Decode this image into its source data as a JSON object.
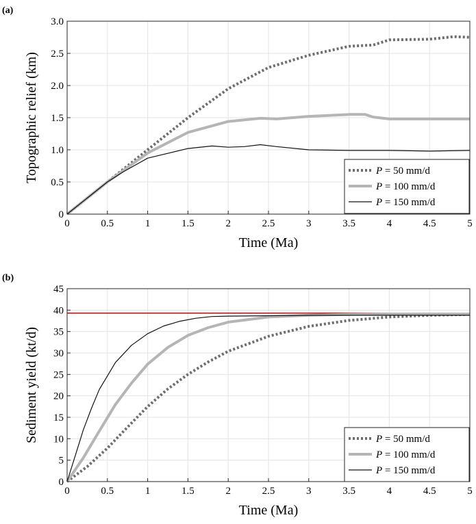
{
  "chart_data": [
    {
      "panel_label": "(a)",
      "type": "line",
      "xlabel": "Time (Ma)",
      "ylabel": "Topographic relief (km)",
      "xlim": [
        0,
        5
      ],
      "ylim": [
        0,
        3.0
      ],
      "xticks": [
        "0",
        "0.5",
        "1",
        "1.5",
        "2",
        "2.5",
        "3",
        "3.5",
        "4",
        "4.5",
        "5"
      ],
      "yticks": [
        "0",
        "0.5",
        "1.0",
        "1.5",
        "2.0",
        "2.5",
        "3.0"
      ],
      "grid": true,
      "legend_position": "bottom-right",
      "series": [
        {
          "name_italic": "P",
          "name_rest": " = 50 mm/d",
          "color": "#6e6e6e",
          "style": "dotted",
          "x": [
            0,
            0.5,
            0.7,
            1.0,
            1.5,
            2.0,
            2.5,
            3.0,
            3.5,
            3.8,
            4.0,
            4.5,
            4.8,
            5.0
          ],
          "y": [
            0,
            0.5,
            0.7,
            1.0,
            1.5,
            1.95,
            2.28,
            2.47,
            2.61,
            2.63,
            2.71,
            2.72,
            2.76,
            2.75
          ]
        },
        {
          "name_italic": "P",
          "name_rest": " = 100 mm/d",
          "color": "#b5b5b5",
          "style": "thick",
          "x": [
            0,
            0.5,
            0.7,
            1.0,
            1.5,
            2.0,
            2.4,
            2.6,
            3.0,
            3.5,
            3.7,
            3.8,
            4.0,
            4.5,
            5.0
          ],
          "y": [
            0,
            0.5,
            0.68,
            0.95,
            1.27,
            1.44,
            1.49,
            1.48,
            1.52,
            1.55,
            1.55,
            1.51,
            1.48,
            1.48,
            1.48
          ]
        },
        {
          "name_italic": "P",
          "name_rest": " = 150 mm/d",
          "color": "#111111",
          "style": "thin",
          "x": [
            0,
            0.5,
            0.7,
            1.0,
            1.5,
            1.8,
            2.0,
            2.2,
            2.4,
            2.6,
            3.0,
            3.5,
            4.0,
            4.5,
            5.0
          ],
          "y": [
            0,
            0.5,
            0.66,
            0.87,
            1.02,
            1.06,
            1.04,
            1.05,
            1.08,
            1.05,
            1.0,
            0.99,
            0.99,
            0.98,
            0.99
          ]
        }
      ]
    },
    {
      "panel_label": "(b)",
      "type": "line",
      "xlabel": "Time (Ma)",
      "ylabel": "Sediment yield (kt/d)",
      "xlim": [
        0,
        5
      ],
      "ylim": [
        0,
        45
      ],
      "xticks": [
        "0",
        "0.5",
        "1",
        "1.5",
        "2",
        "2.5",
        "3",
        "3.5",
        "4",
        "4.5",
        "5"
      ],
      "yticks": [
        "0",
        "5",
        "10",
        "15",
        "20",
        "25",
        "30",
        "35",
        "40",
        "45"
      ],
      "grid": true,
      "legend_position": "bottom-right",
      "reference_line": {
        "y": 39.3,
        "color": "#e00000"
      },
      "series": [
        {
          "name_italic": "P",
          "name_rest": " = 50 mm/d",
          "color": "#6e6e6e",
          "style": "dotted",
          "x": [
            0,
            0.25,
            0.5,
            0.75,
            1.0,
            1.25,
            1.5,
            1.75,
            2.0,
            2.5,
            3.0,
            3.5,
            4.0,
            4.5,
            5.0
          ],
          "y": [
            0,
            3.5,
            7.8,
            12.7,
            17.5,
            21.6,
            25.0,
            27.9,
            30.4,
            33.9,
            36.2,
            37.6,
            38.4,
            38.8,
            39.0
          ]
        },
        {
          "name_italic": "P",
          "name_rest": " = 100 mm/d",
          "color": "#b5b5b5",
          "style": "thick",
          "x": [
            0,
            0.2,
            0.4,
            0.6,
            0.8,
            1.0,
            1.25,
            1.5,
            1.75,
            2.0,
            2.5,
            3.0,
            3.5,
            4.0,
            5.0
          ],
          "y": [
            0,
            5.5,
            11.8,
            18.0,
            23.0,
            27.4,
            31.3,
            34.1,
            35.9,
            37.2,
            38.4,
            38.8,
            39.0,
            39.1,
            39.1
          ]
        },
        {
          "name_italic": "P",
          "name_rest": " = 150 mm/d",
          "color": "#111111",
          "style": "thin",
          "x": [
            0,
            0.1,
            0.2,
            0.3,
            0.4,
            0.6,
            0.8,
            1.0,
            1.2,
            1.4,
            1.6,
            1.8,
            2.0,
            2.5,
            3.0,
            3.5,
            4.0,
            4.5,
            5.0
          ],
          "y": [
            0,
            6.0,
            12.0,
            17.0,
            21.5,
            27.8,
            31.8,
            34.5,
            36.3,
            37.4,
            38.1,
            38.5,
            38.6,
            38.7,
            38.8,
            38.8,
            38.8,
            38.8,
            38.8
          ]
        }
      ]
    }
  ]
}
